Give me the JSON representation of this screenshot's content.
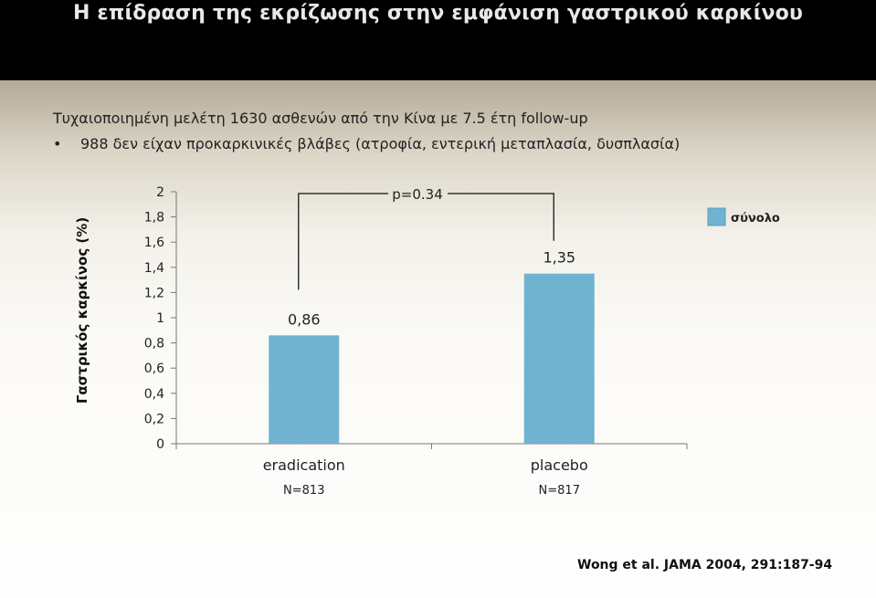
{
  "slide": {
    "title": "Η επίδραση της εκρίζωσης στην εμφάνιση γαστρικού καρκίνου",
    "intro": "Τυχαιοποιημένη μελέτη 1630 ασθενών από την Κίνα με 7.5 έτη follow-up",
    "bullet": "988 δεν είχαν προκαρκινικές βλάβες (ατροφία, εντερική μεταπλασία, δυσπλασία)",
    "citation": "Wong et al. JAMA 2004, 291:187-94"
  },
  "chart_data": {
    "type": "bar",
    "ylabel": "Γαστρικός καρκίνος (%)",
    "ylim": [
      0,
      2
    ],
    "yticks": [
      "0",
      "0,2",
      "0,4",
      "0,6",
      "0,8",
      "1",
      "1,2",
      "1,4",
      "1,6",
      "1,8",
      "2"
    ],
    "categories": [
      "eradication",
      "placebo"
    ],
    "sublabels": [
      "N=813",
      "N=817"
    ],
    "series": [
      {
        "name": "σύνολο",
        "values": [
          0.86,
          1.35
        ],
        "labels": [
          "0,86",
          "1,35"
        ],
        "color": "#6fb3d0"
      }
    ],
    "annotation": "p=0.34",
    "legend": "right",
    "grid": false
  }
}
